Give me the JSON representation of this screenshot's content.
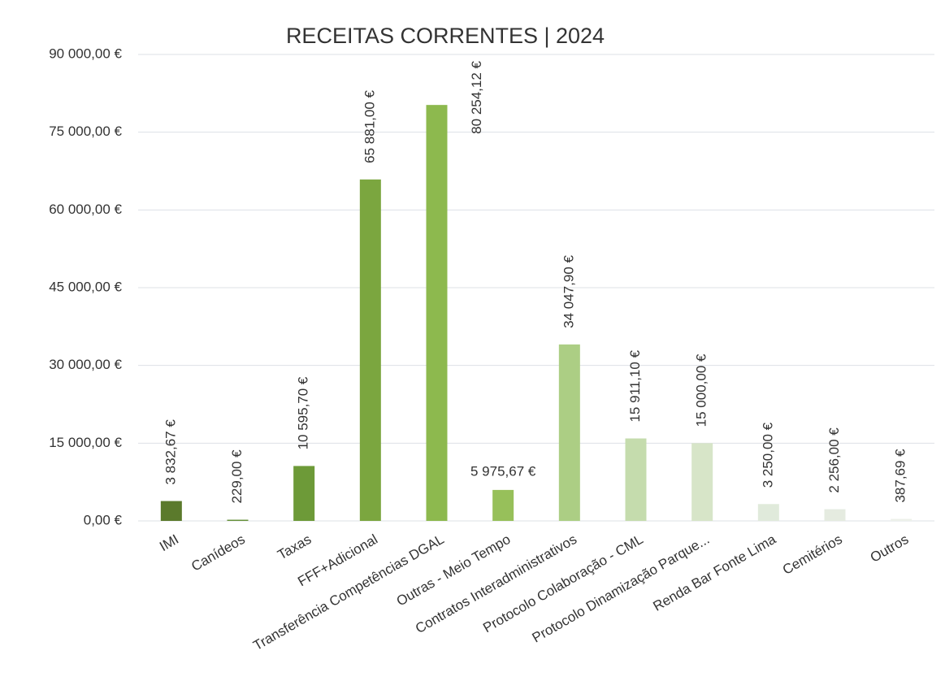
{
  "chart_data": {
    "type": "bar",
    "title": "RECEITAS CORRENTES | 2024",
    "categories": [
      "IMI",
      "Canídeos",
      "Taxas",
      "FFF+Adicional",
      "Transferência Competências DGAL",
      "Outras - Meio Tempo",
      "Contratos Interadministrativos",
      "Protocolo Colaboração - CML",
      "Protocolo Dinamização Parque...",
      "Renda Bar Fonte Lima",
      "Cemitérios",
      "Outros"
    ],
    "values": [
      3832.67,
      229,
      10595.7,
      65881,
      80254.12,
      5975.67,
      34047.9,
      15911.1,
      15000,
      3250,
      2256,
      387.69
    ],
    "value_labels": [
      "3 832,67 €",
      "229,00 €",
      "10 595,70 €",
      "65 881,00 €",
      "80 254,12 €",
      "5 975,67 €",
      "34 047,90 €",
      "15 911,10 €",
      "15 000,00 €",
      "3 250,00 €",
      "2 256,00 €",
      "387,69 €"
    ],
    "colors": [
      "#5b7a2c",
      "#65903a",
      "#6d9a38",
      "#7ba63f",
      "#8db94e",
      "#97c05a",
      "#acce84",
      "#c5dcad",
      "#d7e5c8",
      "#e0eadb",
      "#e5ebe0",
      "#edf1ea"
    ],
    "ylim": [
      0,
      90000
    ],
    "yticks": [
      {
        "value": 0,
        "label": "0,00 €"
      },
      {
        "value": 15000,
        "label": "15 000,00 €"
      },
      {
        "value": 30000,
        "label": "30 000,00 €"
      },
      {
        "value": 45000,
        "label": "45 000,00 €"
      },
      {
        "value": 60000,
        "label": "60 000,00 €"
      },
      {
        "value": 75000,
        "label": "75 000,00 €"
      },
      {
        "value": 90000,
        "label": "90 000,00 €"
      }
    ],
    "grid": true
  }
}
